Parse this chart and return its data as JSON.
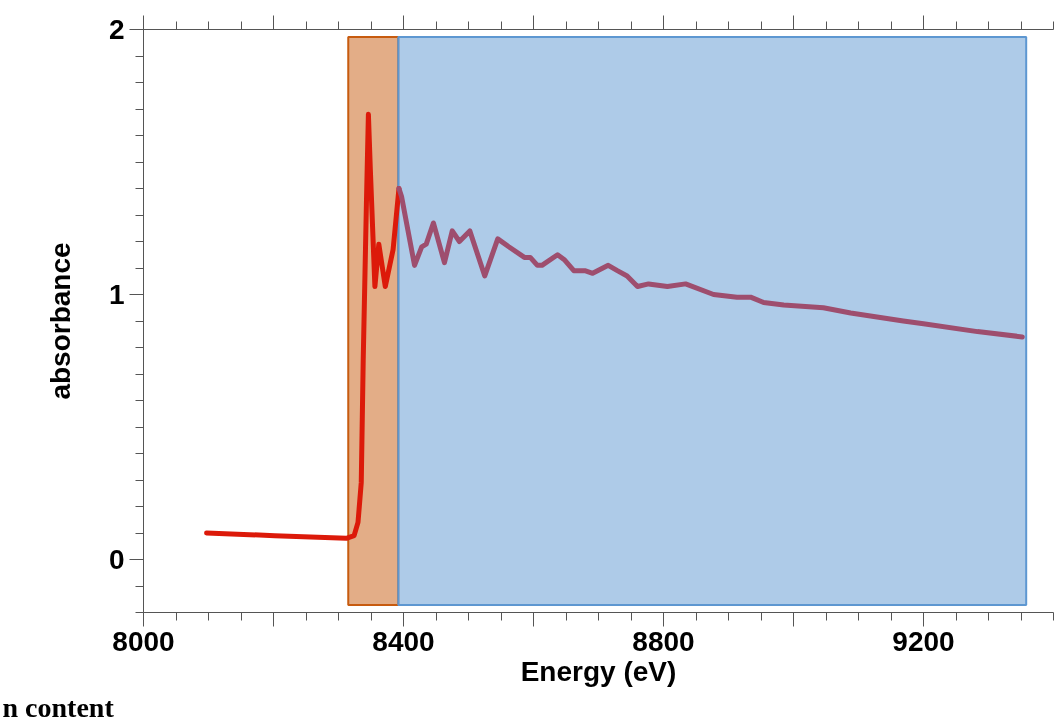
{
  "chart_data": {
    "type": "line",
    "xlabel": "Energy (eV)",
    "ylabel": "absorbance",
    "xlim": [
      8000,
      9400
    ],
    "ylim": [
      -0.2,
      2
    ],
    "xticks": [
      8000,
      {
        "value": 8200,
        "label": null
      },
      8400,
      {
        "value": 8600,
        "label": null
      },
      8800,
      {
        "value": 9000,
        "label": null
      },
      9200
    ],
    "yticks": [
      0,
      1,
      2
    ],
    "grid": false,
    "marker": "none",
    "line_style": "solid",
    "bands": [
      {
        "axis": "x",
        "from": 8315,
        "to": 8392,
        "color": "#c75b0f",
        "label": null
      },
      {
        "axis": "x",
        "from": 8392,
        "to": 9358,
        "color": "#5d97d1",
        "label": null
      }
    ],
    "annotations": [
      "n content"
    ],
    "series": [
      {
        "color": "#dc1a0a",
        "x": [
          8097,
          8202,
          8312,
          8324,
          8330,
          8335,
          8338,
          8343,
          8346,
          8349,
          8356,
          8362,
          8372,
          8384,
          8393
        ],
        "values": [
          0.1,
          0.09,
          0.08,
          0.09,
          0.14,
          0.29,
          0.75,
          1.35,
          1.68,
          1.47,
          1.03,
          1.19,
          1.03,
          1.17,
          1.4
        ]
      },
      {
        "color": "#9e4e6e",
        "x": [
          8393,
          8397,
          8417,
          8428,
          8435,
          8446,
          8463,
          8475,
          8486,
          8502,
          8525,
          8545,
          8562,
          8586,
          8595,
          8606,
          8613,
          8637,
          8648,
          8662,
          8679,
          8691,
          8715,
          8729,
          8744,
          8760,
          8777,
          8806,
          8834,
          8877,
          8913,
          8934,
          8954,
          8985,
          9046,
          9088,
          9169,
          9200,
          9283,
          9352
        ],
        "values": [
          1.4,
          1.37,
          1.11,
          1.18,
          1.19,
          1.27,
          1.12,
          1.24,
          1.2,
          1.24,
          1.07,
          1.21,
          1.18,
          1.14,
          1.14,
          1.11,
          1.11,
          1.15,
          1.13,
          1.09,
          1.09,
          1.08,
          1.11,
          1.09,
          1.07,
          1.03,
          1.04,
          1.03,
          1.04,
          1.0,
          0.99,
          0.99,
          0.97,
          0.96,
          0.95,
          0.93,
          0.9,
          0.89,
          0.86,
          0.84
        ]
      }
    ]
  }
}
